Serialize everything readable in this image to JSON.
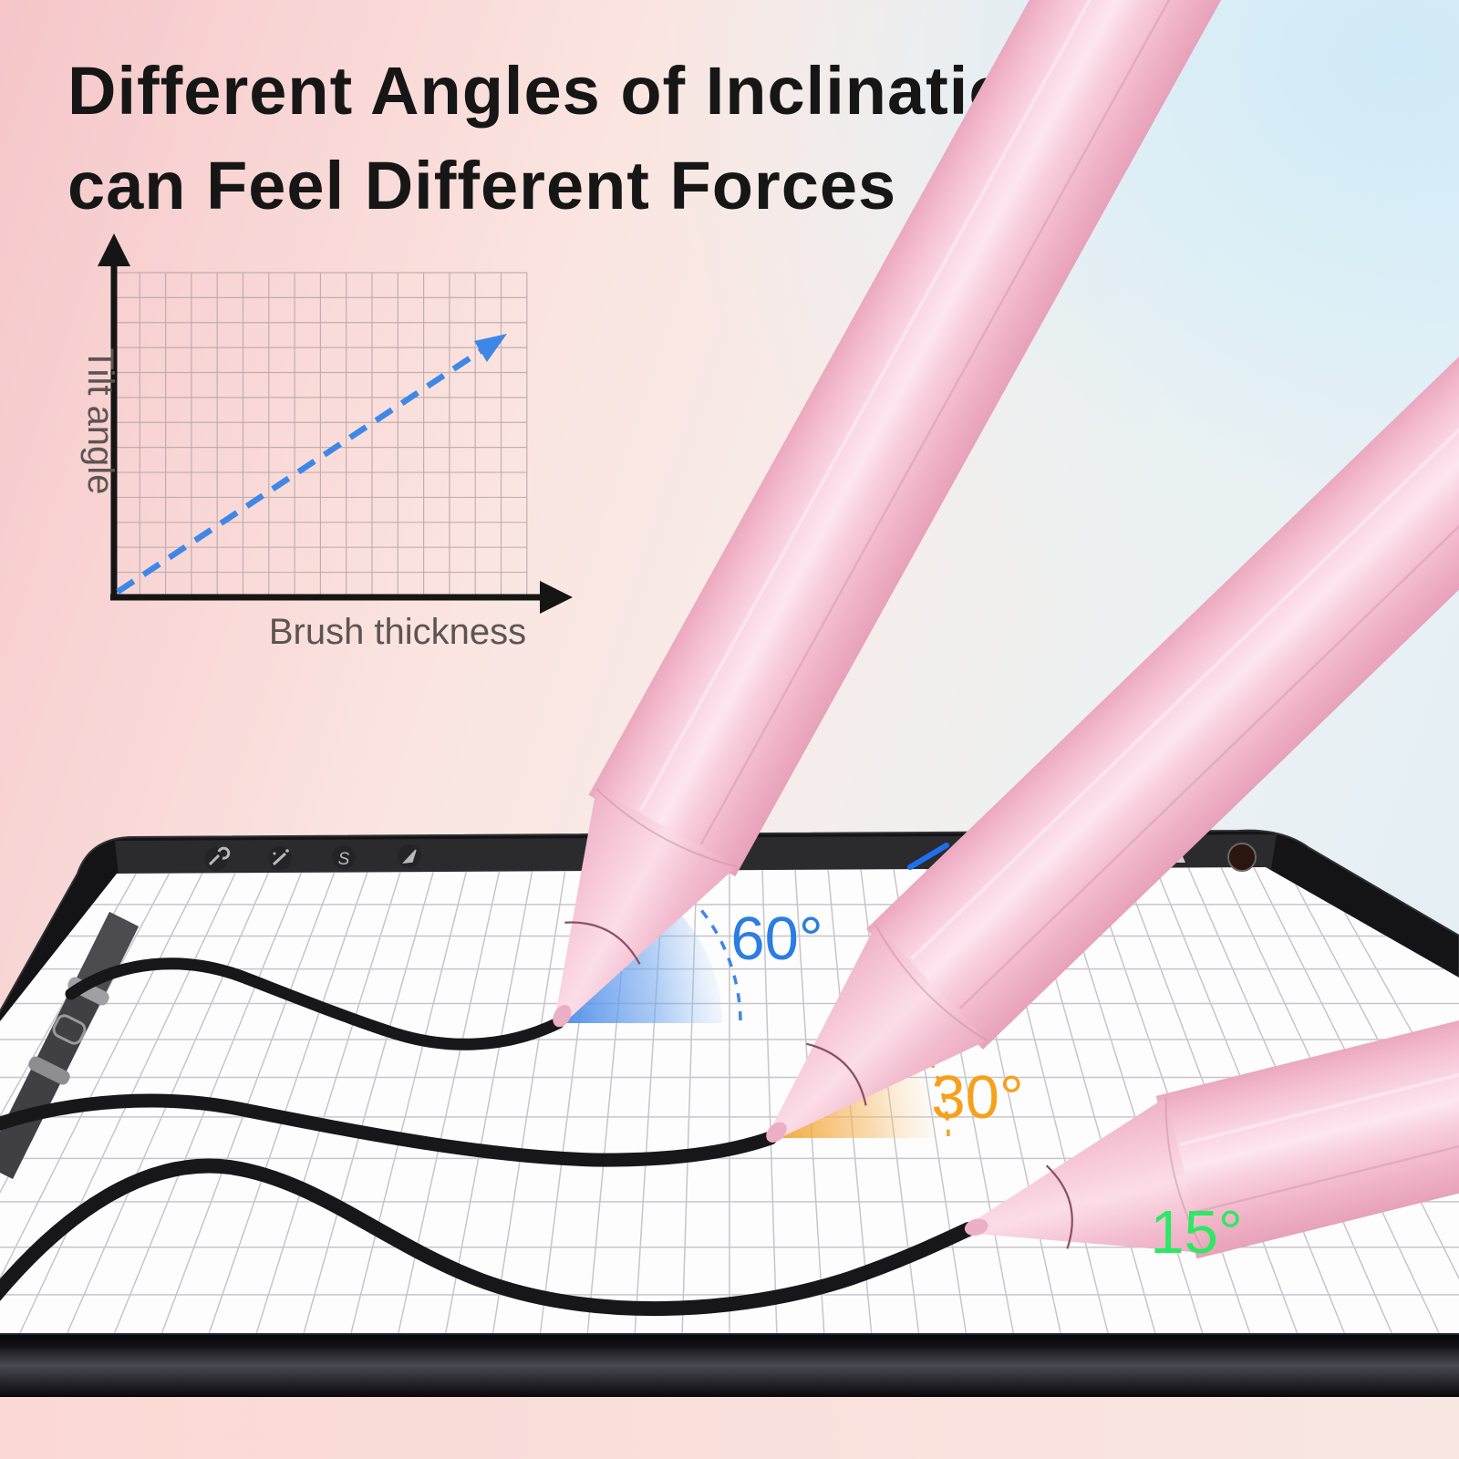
{
  "title": {
    "line1": "Different Angles of Inclination",
    "line2": "can Feel Different Forces"
  },
  "chart_data": {
    "type": "line",
    "title": "",
    "xlabel": "Brush thickness",
    "ylabel": "Tilt angle",
    "grid": true,
    "x_range": [
      0,
      16
    ],
    "y_range": [
      0,
      13
    ],
    "legend": "none",
    "series": [
      {
        "name": "tilt-angle-vs-brush-thickness",
        "style": "dashed-arrow",
        "color": "#3f87e7",
        "trend": "linear-increasing",
        "points": [
          {
            "brush_thickness": 0,
            "tilt_angle": 0
          },
          {
            "brush_thickness": 14.5,
            "tilt_angle": 10
          }
        ]
      }
    ]
  },
  "scene": {
    "angle_labels": [
      {
        "text": "60°",
        "color": "#2b7de2"
      },
      {
        "text": "30°",
        "color": "#f5a11b"
      },
      {
        "text": "15°",
        "color": "#2de863"
      }
    ],
    "toolbar_icons": [
      {
        "name": "actions-wrench-icon"
      },
      {
        "name": "adjustments-wand-icon"
      },
      {
        "name": "selection-icon",
        "glyph": "S"
      },
      {
        "name": "transform-arrow-icon"
      }
    ],
    "brush_stroke_color": "#1f6ff0",
    "color_swatch": "#2b150f",
    "pen_color": "#f7c8d8",
    "ink_color": "#17171a",
    "pen_count": 3
  }
}
